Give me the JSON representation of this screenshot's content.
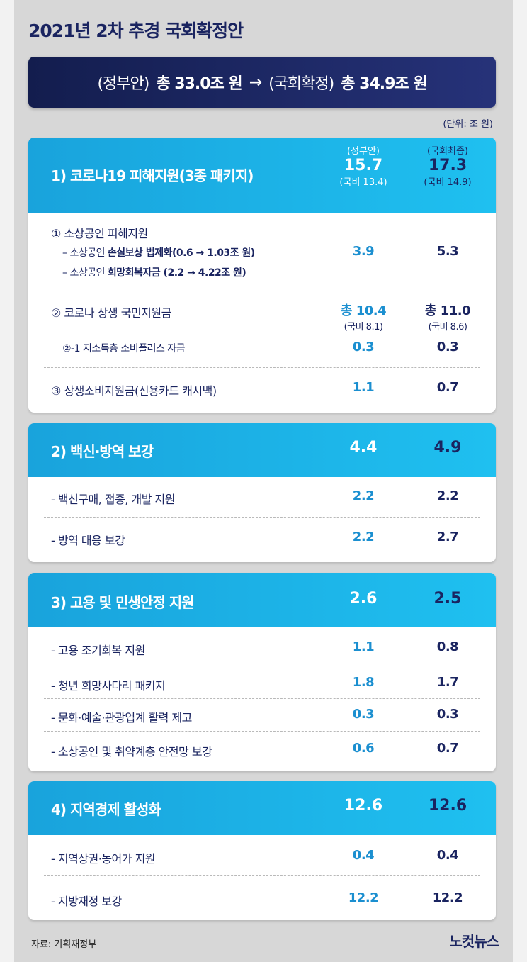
{
  "title": "2021년 2차 추경 국회확정안",
  "banner": {
    "gov_prefix": "(정부안)",
    "gov_total": "총 33.0조 원",
    "arrow": "→",
    "nat_prefix": "(국회확정)",
    "nat_total": "총 34.9조 원"
  },
  "unit": "(단위: 조 원)",
  "section1": {
    "title": "1) 코로나19 피해지원(3종 패키지)",
    "gov_caption": "(정부안)",
    "nat_caption": "(국회최종)",
    "gov_value": "15.7",
    "nat_value": "17.3",
    "gov_sub": "(국비 13.4)",
    "nat_sub": "(국비 14.9)",
    "item1_title": "① 소상공인 피해지원",
    "item1_sub1_pre": "– 소상공인 ",
    "item1_sub1_bold": "손실보상 법제화(0.6 → 1.03조 원)",
    "item1_sub2_pre": "– 소상공인 ",
    "item1_sub2_bold": "희망회복자금 (2.2 → 4.22조 원)",
    "item1_gov": "3.9",
    "item1_nat": "5.3",
    "item2_title": "② 코로나 상생 국민지원금",
    "item2_gov": "총 10.4",
    "item2_nat": "총 11.0",
    "item2_gov_sub": "(국비 8.1)",
    "item2_nat_sub": "(국비 8.6)",
    "item2_sub_label": "②-1 저소득층 소비플러스 자금",
    "item2_sub_gov": "0.3",
    "item2_sub_nat": "0.3",
    "item3_title": "③ 상생소비지원금(신용카드 캐시백)",
    "item3_gov": "1.1",
    "item3_nat": "0.7"
  },
  "section2": {
    "title": "2) 백신·방역 보강",
    "gov_value": "4.4",
    "nat_value": "4.9",
    "rows": [
      {
        "label": "- 백신구매, 접종, 개발 지원",
        "gov": "2.2",
        "nat": "2.2"
      },
      {
        "label": "- 방역 대응 보강",
        "gov": "2.2",
        "nat": "2.7"
      }
    ]
  },
  "section3": {
    "title": "3) 고용 및 민생안정 지원",
    "gov_value": "2.6",
    "nat_value": "2.5",
    "rows": [
      {
        "label": "- 고용 조기회복 지원",
        "gov": "1.1",
        "nat": "0.8"
      },
      {
        "label": "- 청년 희망사다리 패키지",
        "gov": "1.8",
        "nat": "1.7"
      },
      {
        "label": "- 문화·예술·관광업계 활력 제고",
        "gov": "0.3",
        "nat": "0.3"
      },
      {
        "label": "- 소상공인 및 취약계층 안전망 보강",
        "gov": "0.6",
        "nat": "0.7"
      }
    ]
  },
  "section4": {
    "title": "4) 지역경제 활성화",
    "gov_value": "12.6",
    "nat_value": "12.6",
    "rows": [
      {
        "label": "- 지역상권·농어가 지원",
        "gov": "0.4",
        "nat": "0.4"
      },
      {
        "label": "- 지방재정 보강",
        "gov": "12.2",
        "nat": "12.2"
      }
    ]
  },
  "source": "자료: 기획재정부",
  "logo": "노컷뉴스"
}
